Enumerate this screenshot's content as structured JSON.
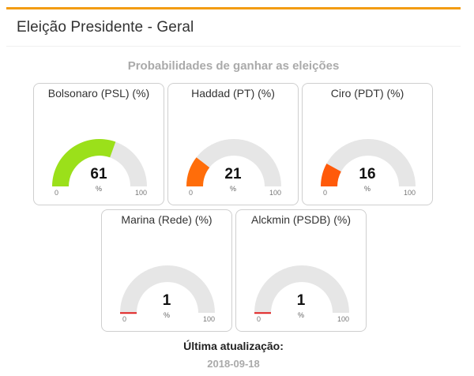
{
  "card": {
    "title": "Eleição Presidente - Geral",
    "subtitle": "Probabilidades de ganhar as eleições"
  },
  "gauges": [
    {
      "label": "Bolsonaro (PSL) (%)",
      "value": 61,
      "display": "61",
      "unit": "%",
      "min": "0",
      "max": "100",
      "color": "#9be01a"
    },
    {
      "label": "Haddad (PT) (%)",
      "value": 21,
      "display": "21",
      "unit": "%",
      "min": "0",
      "max": "100",
      "color": "#ff6d0a"
    },
    {
      "label": "Ciro (PDT) (%)",
      "value": 16,
      "display": "16",
      "unit": "%",
      "min": "0",
      "max": "100",
      "color": "#ff5a0a"
    },
    {
      "label": "Marina (Rede) (%)",
      "value": 1,
      "display": "1",
      "unit": "%",
      "min": "0",
      "max": "100",
      "color": "#e02020"
    },
    {
      "label": "Alckmin (PSDB) (%)",
      "value": 1,
      "display": "1",
      "unit": "%",
      "min": "0",
      "max": "100",
      "color": "#e02020"
    }
  ],
  "footer": {
    "update_label": "Última atualização:",
    "update_date": "2018-09-18"
  },
  "colors": {
    "accent": "#f39c12",
    "track": "#e6e6e6"
  }
}
